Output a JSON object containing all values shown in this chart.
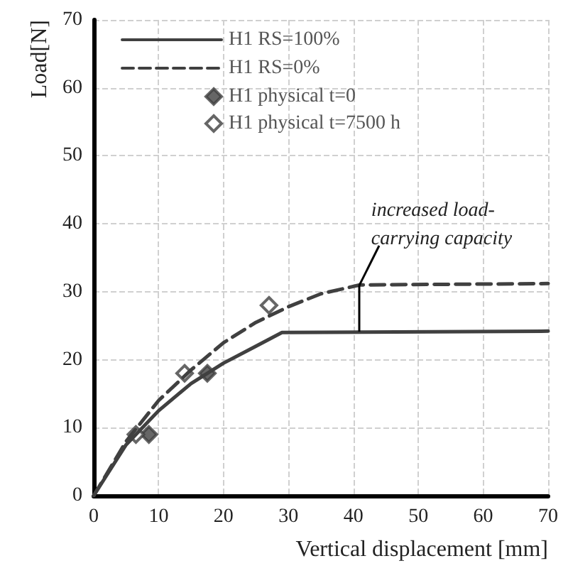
{
  "chart_data": {
    "type": "line",
    "xlabel": "Vertical displacement [mm]",
    "ylabel": "Load[N]",
    "xlim": [
      0,
      70
    ],
    "ylim": [
      0,
      70
    ],
    "xticks": [
      0,
      10,
      20,
      30,
      40,
      50,
      60,
      70
    ],
    "yticks": [
      0,
      10,
      20,
      30,
      40,
      50,
      60,
      70
    ],
    "grid": true,
    "legend": "top left",
    "marker": "none",
    "series": [
      {
        "name": "H1 RS=100%",
        "color": "#404040",
        "line_style": "solid",
        "x": [
          0,
          5,
          10,
          15,
          20,
          25,
          29,
          70
        ],
        "values": [
          0,
          7.5,
          12.5,
          16.5,
          19.5,
          22,
          24,
          24.2
        ]
      },
      {
        "name": "H1 RS=0%",
        "color": "#404040",
        "line_style": "dashed",
        "x": [
          0,
          5,
          10,
          15,
          20,
          25,
          30,
          35,
          41,
          70
        ],
        "values": [
          0,
          8,
          14,
          18.5,
          22.5,
          25.5,
          27.8,
          29.7,
          31,
          31.2
        ]
      },
      {
        "name": "H1 physical t=0",
        "type": "scatter",
        "marker": "diamond",
        "color": "#404040",
        "x": [
          8.5,
          17.5
        ],
        "values": [
          9,
          18
        ]
      },
      {
        "name": "H1 physical t=7500 h",
        "type": "scatter",
        "marker": "diamond",
        "color": "#ffffff",
        "x": [
          6.5,
          14,
          27
        ],
        "values": [
          9,
          18,
          28
        ]
      }
    ],
    "annotations": [
      {
        "text": "increased load-\ncarrying capacity",
        "x": 41,
        "y": 31
      }
    ]
  }
}
